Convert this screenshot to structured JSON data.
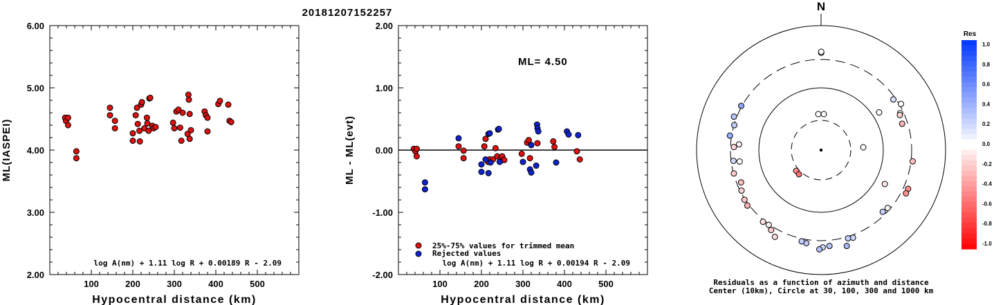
{
  "title": "20181207152257",
  "chart_data": [
    {
      "type": "scatter",
      "ylabel": "ML(IASPEI)",
      "xlabel": "Hypocentral distance (km)",
      "xlim": [
        0,
        600
      ],
      "ylim": [
        2.0,
        6.0
      ],
      "xticks": [
        "100",
        "200",
        "300",
        "400",
        "500"
      ],
      "yticks": [
        "2.00",
        "3.00",
        "4.00",
        "5.00",
        "6.00"
      ],
      "formula": "log A(nm) + 1.11 log R + 0.00189 R - 2.09",
      "marker_color": "#dd1111",
      "points": [
        [
          37,
          4.52
        ],
        [
          39,
          4.47
        ],
        [
          44,
          4.52
        ],
        [
          44,
          4.4
        ],
        [
          64,
          3.98
        ],
        [
          64,
          3.87
        ],
        [
          145,
          4.68
        ],
        [
          145,
          4.56
        ],
        [
          157,
          4.47
        ],
        [
          157,
          4.35
        ],
        [
          200,
          4.27
        ],
        [
          200,
          4.15
        ],
        [
          207,
          4.56
        ],
        [
          210,
          4.68
        ],
        [
          212,
          4.42
        ],
        [
          216,
          4.31
        ],
        [
          217,
          4.14
        ],
        [
          220,
          4.73
        ],
        [
          222,
          4.77
        ],
        [
          228,
          4.35
        ],
        [
          234,
          4.52
        ],
        [
          235,
          4.43
        ],
        [
          238,
          4.31
        ],
        [
          240,
          4.83
        ],
        [
          242,
          4.84
        ],
        [
          247,
          4.39
        ],
        [
          250,
          4.35
        ],
        [
          255,
          4.37
        ],
        [
          297,
          4.44
        ],
        [
          300,
          4.35
        ],
        [
          305,
          4.62
        ],
        [
          310,
          4.65
        ],
        [
          314,
          4.36
        ],
        [
          317,
          4.15
        ],
        [
          320,
          4.6
        ],
        [
          332,
          4.26
        ],
        [
          334,
          4.89
        ],
        [
          335,
          4.81
        ],
        [
          337,
          4.58
        ],
        [
          337,
          4.18
        ],
        [
          340,
          4.32
        ],
        [
          373,
          4.62
        ],
        [
          376,
          4.56
        ],
        [
          380,
          4.3
        ],
        [
          380,
          4.52
        ],
        [
          406,
          4.74
        ],
        [
          410,
          4.79
        ],
        [
          430,
          4.73
        ],
        [
          433,
          4.47
        ],
        [
          437,
          4.45
        ]
      ]
    },
    {
      "type": "scatter",
      "ylabel": "ML - ML(evt)",
      "xlabel": "Hypocentral distance (km)",
      "xlim": [
        0,
        600
      ],
      "ylim": [
        -2.0,
        2.0
      ],
      "xticks": [
        "100",
        "200",
        "300",
        "400",
        "500"
      ],
      "yticks": [
        "-2.00",
        "-1.00",
        "0.00",
        "1.00",
        "2.00"
      ],
      "annotation": "ML= 4.50",
      "formula": "log A(nm) + 1.11 log R + 0.00194 R - 2.09",
      "legend": [
        {
          "label": "25%-75% values for trimmed mean",
          "color": "#dd1111"
        },
        {
          "label": "Rejected values",
          "color": "#1122cc"
        }
      ],
      "series": [
        {
          "color": "#dd1111",
          "points": [
            [
              37,
              0.02
            ],
            [
              41,
              -0.02
            ],
            [
              44,
              0.02
            ],
            [
              44,
              -0.1
            ],
            [
              145,
              0.06
            ],
            [
              157,
              -0.01
            ],
            [
              157,
              -0.13
            ],
            [
              207,
              0.06
            ],
            [
              210,
              0.18
            ],
            [
              216,
              -0.19
            ],
            [
              220,
              -0.15
            ],
            [
              228,
              -0.15
            ],
            [
              234,
              0.03
            ],
            [
              238,
              -0.1
            ],
            [
              247,
              -0.13
            ],
            [
              250,
              -0.1
            ],
            [
              255,
              -0.16
            ],
            [
              297,
              -0.06
            ],
            [
              310,
              0.12
            ],
            [
              314,
              0.16
            ],
            [
              317,
              -0.13
            ],
            [
              335,
              0.11
            ],
            [
              373,
              0.14
            ],
            [
              376,
              0.05
            ],
            [
              430,
              -0.02
            ],
            [
              437,
              -0.15
            ]
          ]
        },
        {
          "color": "#1122cc",
          "points": [
            [
              64,
              -0.52
            ],
            [
              64,
              -0.63
            ],
            [
              145,
              0.19
            ],
            [
              200,
              -0.23
            ],
            [
              200,
              -0.35
            ],
            [
              210,
              -0.15
            ],
            [
              217,
              0.26
            ],
            [
              220,
              0.27
            ],
            [
              222,
              -0.2
            ],
            [
              217,
              -0.37
            ],
            [
              240,
              0.33
            ],
            [
              242,
              0.34
            ],
            [
              244,
              -0.19
            ],
            [
              300,
              -0.19
            ],
            [
              317,
              -0.31
            ],
            [
              320,
              0.08
            ],
            [
              332,
              -0.25
            ],
            [
              334,
              0.41
            ],
            [
              335,
              0.35
            ],
            [
              337,
              0.3
            ],
            [
              380,
              -0.2
            ],
            [
              406,
              0.3
            ],
            [
              410,
              0.25
            ],
            [
              433,
              0.24
            ],
            [
              320,
              -0.36
            ]
          ]
        }
      ]
    },
    {
      "type": "polar-scatter",
      "north_label": "N",
      "caption_line1": "Residuals as a function of azimuth and distance",
      "caption_line2": "Center (10km), Circle at 30, 100, 300 and 1000 km",
      "colorbar_title": "Res",
      "colorbar_ticks": [
        "1.0",
        "0.8",
        "0.6",
        "0.4",
        "0.2",
        "0.0",
        "-0.2",
        "-0.4",
        "-0.6",
        "-0.8",
        "-1.0"
      ],
      "residual_points": [
        [
          0.1,
          -0.97,
          0.0
        ],
        [
          0.1,
          -0.98,
          0.0
        ],
        [
          65,
          -0.87,
          0.0
        ],
        [
          57,
          -0.69,
          0.0
        ],
        [
          55,
          -0.88,
          0.15
        ],
        [
          60,
          -0.92,
          0.0
        ],
        [
          66,
          -0.86,
          -0.17
        ],
        [
          72,
          -0.85,
          -0.3
        ],
        [
          97,
          -0.92,
          -0.25
        ],
        [
          114,
          -0.95,
          -0.44
        ],
        [
          117,
          -0.95,
          -0.42
        ],
        [
          118,
          -0.72,
          -0.1
        ],
        [
          131,
          -0.88,
          -0.05
        ],
        [
          135,
          -0.87,
          0.22
        ],
        [
          160,
          -0.93,
          0.18
        ],
        [
          163,
          -0.92,
          0.23
        ],
        [
          165,
          -0.99,
          0.35
        ],
        [
          175,
          -0.96,
          0.28
        ],
        [
          179,
          -0.97,
          0.2
        ],
        [
          181,
          -0.99,
          0.3
        ],
        [
          189,
          -0.94,
          0.26
        ],
        [
          192,
          -0.93,
          0.24
        ],
        [
          208,
          -0.98,
          -0.15
        ],
        [
          212,
          -0.94,
          -0.2
        ],
        [
          215,
          -0.91,
          -0.05
        ],
        [
          219,
          -0.92,
          -0.12
        ],
        [
          233,
          -0.92,
          -0.3
        ],
        [
          237,
          -0.91,
          -0.22
        ],
        [
          243,
          -0.89,
          -0.16
        ],
        [
          248,
          -0.86,
          -0.25
        ],
        [
          255,
          -0.9,
          -0.2
        ],
        [
          263,
          -0.88,
          0.18
        ],
        [
          262,
          -0.82,
          0.0
        ],
        [
          272,
          -0.87,
          -0.15
        ],
        [
          274,
          -0.82,
          -0.05
        ],
        [
          279,
          -0.92,
          0.4
        ],
        [
          286,
          -0.9,
          0.25
        ],
        [
          291,
          -0.93,
          0.28
        ],
        [
          299,
          -0.91,
          0.45
        ]
      ],
      "inner_points": [
        [
          182,
          0.99,
          0.0
        ],
        [
          180,
          0.99,
          0.0
        ],
        [
          90,
          0.99,
          0.0
        ],
        [
          245,
          0.72,
          -0.45
        ],
        [
          242,
          0.75,
          -0.55
        ]
      ]
    }
  ]
}
